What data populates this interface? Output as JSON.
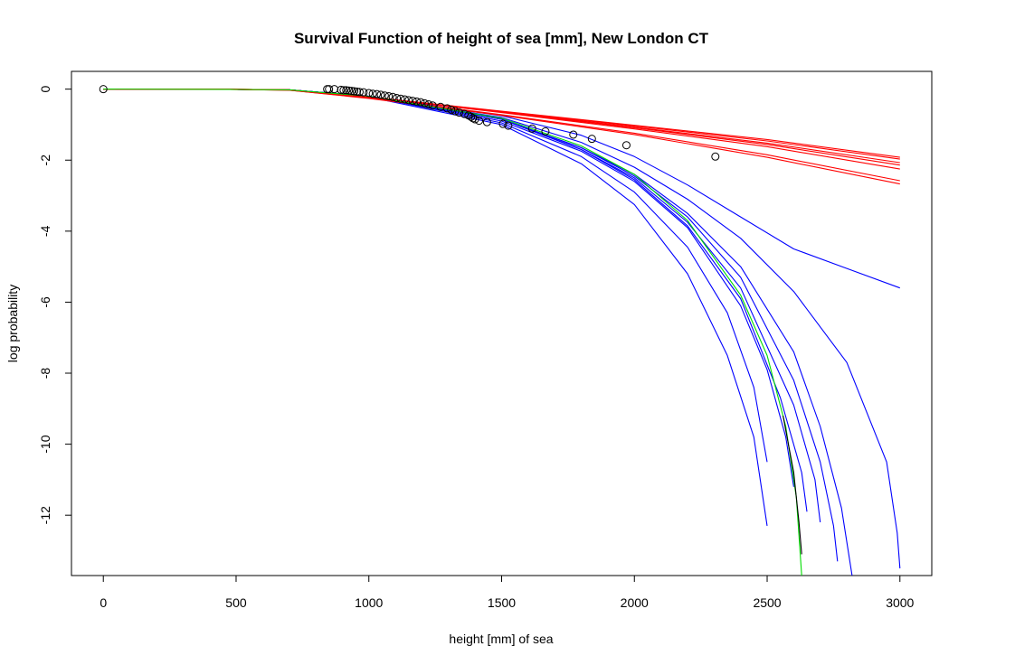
{
  "chart_data": {
    "type": "line",
    "title": "Survival Function of height of sea [mm], New London CT",
    "xlabel": "height [mm] of sea",
    "ylabel": "log probability",
    "xlim": [
      -120,
      3120
    ],
    "ylim": [
      -13.7,
      0.5
    ],
    "x_ticks": [
      0,
      500,
      1000,
      1500,
      2000,
      2500,
      3000
    ],
    "y_ticks": [
      0,
      -2,
      -4,
      -6,
      -8,
      -10,
      -12
    ],
    "grid": false,
    "colors": {
      "observed": "#000000",
      "red_fits": "#ff0000",
      "blue_fits": "#0000ff",
      "green_fit": "#00dd00",
      "black_fit": "#000000"
    },
    "observed_points": [
      [
        0,
        0
      ],
      [
        843,
        0
      ],
      [
        850,
        0
      ],
      [
        870,
        0
      ],
      [
        895,
        -0.02
      ],
      [
        905,
        -0.03
      ],
      [
        915,
        -0.03
      ],
      [
        925,
        -0.04
      ],
      [
        935,
        -0.05
      ],
      [
        945,
        -0.06
      ],
      [
        955,
        -0.07
      ],
      [
        965,
        -0.08
      ],
      [
        980,
        -0.09
      ],
      [
        1000,
        -0.11
      ],
      [
        1015,
        -0.13
      ],
      [
        1030,
        -0.14
      ],
      [
        1045,
        -0.16
      ],
      [
        1060,
        -0.18
      ],
      [
        1075,
        -0.2
      ],
      [
        1090,
        -0.22
      ],
      [
        1105,
        -0.25
      ],
      [
        1120,
        -0.27
      ],
      [
        1135,
        -0.29
      ],
      [
        1150,
        -0.31
      ],
      [
        1165,
        -0.33
      ],
      [
        1180,
        -0.35
      ],
      [
        1195,
        -0.37
      ],
      [
        1210,
        -0.4
      ],
      [
        1225,
        -0.43
      ],
      [
        1240,
        -0.46
      ],
      [
        1270,
        -0.5
      ],
      [
        1295,
        -0.54
      ],
      [
        1310,
        -0.58
      ],
      [
        1325,
        -0.62
      ],
      [
        1340,
        -0.66
      ],
      [
        1360,
        -0.7
      ],
      [
        1375,
        -0.74
      ],
      [
        1385,
        -0.78
      ],
      [
        1392,
        -0.82
      ],
      [
        1400,
        -0.85
      ],
      [
        1415,
        -0.89
      ],
      [
        1445,
        -0.93
      ],
      [
        1505,
        -0.98
      ],
      [
        1525,
        -1.03
      ],
      [
        1615,
        -1.11
      ],
      [
        1665,
        -1.19
      ],
      [
        1770,
        -1.28
      ],
      [
        1840,
        -1.4
      ],
      [
        1970,
        -1.58
      ],
      [
        2305,
        -1.9
      ]
    ],
    "red_fits": [
      {
        "points": [
          [
            0,
            0
          ],
          [
            400,
            0
          ],
          [
            700,
            -0.02
          ],
          [
            1000,
            -0.22
          ],
          [
            1500,
            -0.62
          ],
          [
            2000,
            -1.02
          ],
          [
            2500,
            -1.42
          ],
          [
            3000,
            -1.92
          ]
        ]
      },
      {
        "points": [
          [
            0,
            0
          ],
          [
            400,
            0
          ],
          [
            700,
            -0.02
          ],
          [
            1000,
            -0.22
          ],
          [
            1500,
            -0.63
          ],
          [
            2000,
            -1.04
          ],
          [
            2500,
            -1.46
          ],
          [
            3000,
            -1.97
          ]
        ]
      },
      {
        "points": [
          [
            0,
            0
          ],
          [
            400,
            0
          ],
          [
            700,
            -0.02
          ],
          [
            1000,
            -0.22
          ],
          [
            1500,
            -0.64
          ],
          [
            2000,
            -1.07
          ],
          [
            2500,
            -1.52
          ],
          [
            3000,
            -2.07
          ]
        ]
      },
      {
        "points": [
          [
            0,
            0
          ],
          [
            400,
            0
          ],
          [
            700,
            -0.02
          ],
          [
            1000,
            -0.23
          ],
          [
            1500,
            -0.65
          ],
          [
            2000,
            -1.09
          ],
          [
            2500,
            -1.56
          ],
          [
            3000,
            -2.14
          ]
        ]
      },
      {
        "points": [
          [
            0,
            0
          ],
          [
            400,
            0
          ],
          [
            700,
            -0.02
          ],
          [
            1000,
            -0.23
          ],
          [
            1500,
            -0.66
          ],
          [
            2000,
            -1.12
          ],
          [
            2500,
            -1.62
          ],
          [
            3000,
            -2.25
          ]
        ]
      },
      {
        "points": [
          [
            0,
            0
          ],
          [
            400,
            0
          ],
          [
            700,
            -0.03
          ],
          [
            1000,
            -0.25
          ],
          [
            1500,
            -0.72
          ],
          [
            2000,
            -1.24
          ],
          [
            2500,
            -1.85
          ],
          [
            3000,
            -2.58
          ]
        ]
      },
      {
        "points": [
          [
            0,
            0
          ],
          [
            400,
            0
          ],
          [
            700,
            -0.03
          ],
          [
            1000,
            -0.26
          ],
          [
            1500,
            -0.74
          ],
          [
            2000,
            -1.28
          ],
          [
            2500,
            -1.92
          ],
          [
            3000,
            -2.67
          ]
        ]
      }
    ],
    "blue_fits": [
      {
        "points": [
          [
            0,
            0
          ],
          [
            500,
            -0.01
          ],
          [
            700,
            -0.02
          ],
          [
            1000,
            -0.2
          ],
          [
            1500,
            -0.75
          ],
          [
            1800,
            -1.3
          ],
          [
            2000,
            -1.9
          ],
          [
            2200,
            -2.7
          ],
          [
            2400,
            -3.6
          ],
          [
            2600,
            -4.5
          ],
          [
            2800,
            -5.05
          ],
          [
            3000,
            -5.6
          ]
        ]
      },
      {
        "points": [
          [
            0,
            0
          ],
          [
            500,
            -0.01
          ],
          [
            700,
            -0.02
          ],
          [
            1000,
            -0.2
          ],
          [
            1500,
            -0.8
          ],
          [
            1800,
            -1.5
          ],
          [
            2000,
            -2.2
          ],
          [
            2200,
            -3.1
          ],
          [
            2400,
            -4.2
          ],
          [
            2600,
            -5.7
          ],
          [
            2800,
            -7.7
          ],
          [
            2950,
            -10.5
          ],
          [
            2990,
            -12.5
          ],
          [
            3000,
            -13.5
          ]
        ]
      },
      {
        "points": [
          [
            0,
            0
          ],
          [
            500,
            -0.01
          ],
          [
            700,
            -0.02
          ],
          [
            1000,
            -0.2
          ],
          [
            1500,
            -0.85
          ],
          [
            1800,
            -1.65
          ],
          [
            2000,
            -2.4
          ],
          [
            2200,
            -3.5
          ],
          [
            2400,
            -5.0
          ],
          [
            2600,
            -7.4
          ],
          [
            2700,
            -9.5
          ],
          [
            2780,
            -11.8
          ],
          [
            2820,
            -13.7
          ]
        ]
      },
      {
        "points": [
          [
            0,
            0
          ],
          [
            500,
            -0.01
          ],
          [
            700,
            -0.02
          ],
          [
            1000,
            -0.2
          ],
          [
            1500,
            -0.85
          ],
          [
            1800,
            -1.65
          ],
          [
            2000,
            -2.45
          ],
          [
            2200,
            -3.6
          ],
          [
            2400,
            -5.3
          ],
          [
            2600,
            -8.2
          ],
          [
            2700,
            -10.5
          ],
          [
            2750,
            -12.3
          ],
          [
            2765,
            -13.3
          ]
        ]
      },
      {
        "points": [
          [
            0,
            0
          ],
          [
            500,
            -0.01
          ],
          [
            700,
            -0.02
          ],
          [
            1000,
            -0.2
          ],
          [
            1500,
            -0.85
          ],
          [
            1800,
            -1.7
          ],
          [
            2000,
            -2.5
          ],
          [
            2200,
            -3.75
          ],
          [
            2400,
            -5.6
          ],
          [
            2600,
            -8.9
          ],
          [
            2680,
            -11.0
          ],
          [
            2700,
            -12.2
          ]
        ]
      },
      {
        "points": [
          [
            0,
            0
          ],
          [
            500,
            -0.01
          ],
          [
            700,
            -0.02
          ],
          [
            1000,
            -0.2
          ],
          [
            1500,
            -0.85
          ],
          [
            1800,
            -1.7
          ],
          [
            2000,
            -2.55
          ],
          [
            2200,
            -3.85
          ],
          [
            2400,
            -5.9
          ],
          [
            2550,
            -8.7
          ],
          [
            2630,
            -10.8
          ],
          [
            2650,
            -11.9
          ]
        ]
      },
      {
        "points": [
          [
            0,
            0
          ],
          [
            500,
            -0.01
          ],
          [
            700,
            -0.02
          ],
          [
            1000,
            -0.2
          ],
          [
            1500,
            -0.9
          ],
          [
            1800,
            -1.75
          ],
          [
            2000,
            -2.6
          ],
          [
            2200,
            -3.9
          ],
          [
            2400,
            -6.1
          ],
          [
            2500,
            -7.9
          ],
          [
            2570,
            -9.8
          ],
          [
            2600,
            -11.2
          ]
        ]
      },
      {
        "points": [
          [
            0,
            0
          ],
          [
            500,
            -0.01
          ],
          [
            700,
            -0.02
          ],
          [
            1000,
            -0.2
          ],
          [
            1500,
            -0.95
          ],
          [
            1800,
            -1.9
          ],
          [
            2000,
            -2.9
          ],
          [
            2200,
            -4.45
          ],
          [
            2350,
            -6.3
          ],
          [
            2450,
            -8.4
          ],
          [
            2500,
            -10.5
          ]
        ]
      },
      {
        "points": [
          [
            0,
            0
          ],
          [
            500,
            -0.01
          ],
          [
            700,
            -0.02
          ],
          [
            1000,
            -0.22
          ],
          [
            1500,
            -1.0
          ],
          [
            1800,
            -2.1
          ],
          [
            2000,
            -3.25
          ],
          [
            2200,
            -5.2
          ],
          [
            2350,
            -7.5
          ],
          [
            2450,
            -9.8
          ],
          [
            2500,
            -12.3
          ]
        ]
      }
    ],
    "green_fit": {
      "points": [
        [
          0,
          0
        ],
        [
          500,
          -0.01
        ],
        [
          700,
          -0.02
        ],
        [
          1000,
          -0.2
        ],
        [
          1500,
          -0.82
        ],
        [
          1800,
          -1.6
        ],
        [
          2000,
          -2.4
        ],
        [
          2200,
          -3.7
        ],
        [
          2400,
          -5.8
        ],
        [
          2500,
          -7.5
        ],
        [
          2570,
          -9.5
        ],
        [
          2610,
          -11.5
        ],
        [
          2630,
          -13.7
        ]
      ]
    },
    "black_fit": {
      "points": [
        [
          2560,
          -9.2
        ],
        [
          2600,
          -10.8
        ],
        [
          2620,
          -12.2
        ],
        [
          2630,
          -13.1
        ]
      ]
    }
  }
}
